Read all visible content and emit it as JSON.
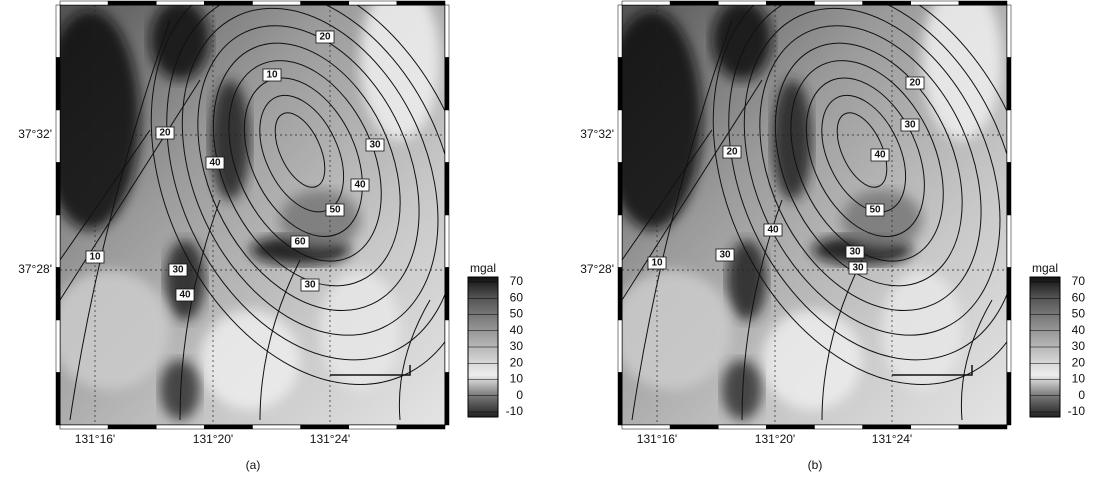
{
  "panels": [
    {
      "caption": "(a)",
      "latitude_labels": [
        "37°32'",
        "37°28'"
      ],
      "longitude_labels": [
        "131°16'",
        "131°20'",
        "131°24'"
      ],
      "colorbar": {
        "unit": "mgal",
        "ticks": [
          70,
          60,
          50,
          40,
          30,
          20,
          10,
          0,
          -10
        ]
      },
      "contour_labels": [
        "20",
        "10",
        "30",
        "20",
        "40",
        "40",
        "50",
        "60",
        "10",
        "30",
        "40",
        "30"
      ]
    },
    {
      "caption": "(b)",
      "latitude_labels": [
        "37°32'",
        "37°28'"
      ],
      "longitude_labels": [
        "131°16'",
        "131°20'",
        "131°24'"
      ],
      "colorbar": {
        "unit": "mgal",
        "ticks": [
          70,
          60,
          50,
          40,
          30,
          20,
          10,
          0,
          -10
        ]
      },
      "contour_labels": [
        "20",
        "30",
        "20",
        "40",
        "50",
        "40",
        "30",
        "10",
        "30",
        "30"
      ]
    }
  ]
}
